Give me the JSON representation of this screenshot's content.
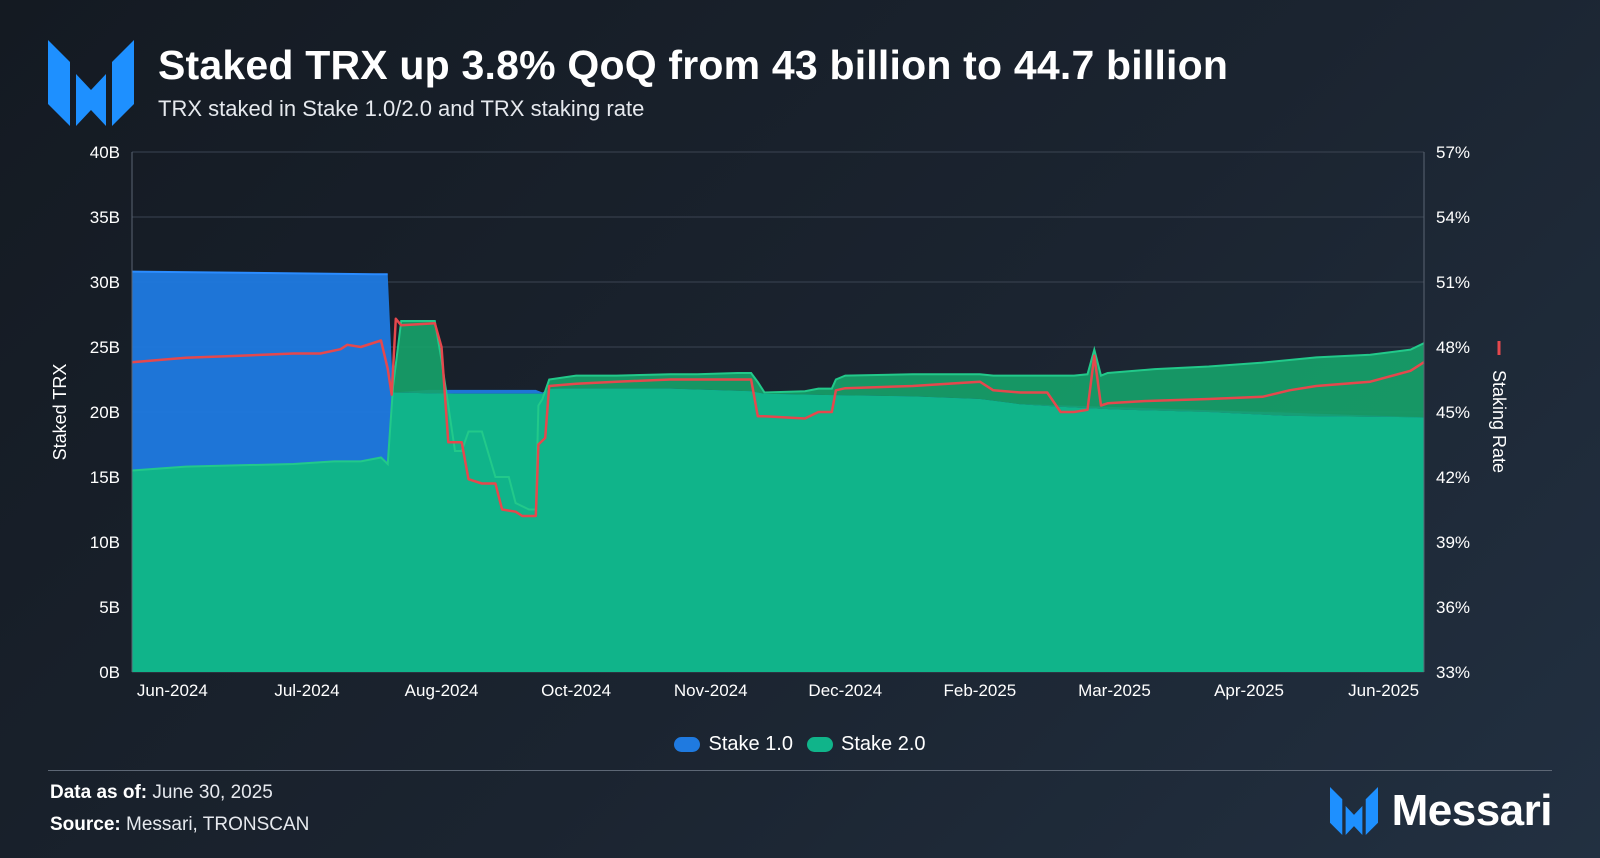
{
  "header": {
    "title": "Staked TRX up 3.8% QoQ from 43 billion to 44.7 billion",
    "subtitle": "TRX staked in Stake 1.0/2.0 and TRX staking rate"
  },
  "footer": {
    "data_label": "Data as of:",
    "data_value": "June 30, 2025",
    "source_label": "Source:",
    "source_value": "Messari, TRONSCAN",
    "brand": "Messari"
  },
  "colors": {
    "stake1": "#1f7ae0",
    "stake2": "#10b48a",
    "stake2_upper": "#16a36a",
    "rate": "#e5484d",
    "logo": "#1e90ff"
  },
  "icons": {
    "logo": "messari-logo-icon"
  },
  "chart_data": {
    "type": "area",
    "title": "Staked TRX up 3.8% QoQ from 43 billion to 44.7 billion",
    "ylabel": "Staked TRX",
    "y2label": "Staking Rate",
    "ylim": [
      0,
      40
    ],
    "y2lim": [
      33,
      57
    ],
    "yticks": [
      "0B",
      "5B",
      "10B",
      "15B",
      "20B",
      "25B",
      "30B",
      "35B",
      "40B"
    ],
    "y2ticks": [
      "33%",
      "36%",
      "39%",
      "42%",
      "45%",
      "48%",
      "51%",
      "54%",
      "57%"
    ],
    "xlim": [
      0,
      96
    ],
    "xticks": [
      {
        "label": "Jun-2024",
        "x": 3
      },
      {
        "label": "Jul-2024",
        "x": 13
      },
      {
        "label": "Aug-2024",
        "x": 23
      },
      {
        "label": "Oct-2024",
        "x": 33
      },
      {
        "label": "Nov-2024",
        "x": 43
      },
      {
        "label": "Dec-2024",
        "x": 53
      },
      {
        "label": "Feb-2025",
        "x": 63
      },
      {
        "label": "Mar-2025",
        "x": 73
      },
      {
        "label": "Apr-2025",
        "x": 83
      },
      {
        "label": "Jun-2025",
        "x": 93
      }
    ],
    "legend": [
      "Stake 1.0",
      "Stake 2.0"
    ],
    "series": [
      {
        "name": "Stake 2.0",
        "axis": "left",
        "points": [
          [
            0,
            15.5
          ],
          [
            4,
            15.8
          ],
          [
            8,
            15.9
          ],
          [
            12,
            16.0
          ],
          [
            15,
            16.2
          ],
          [
            17,
            16.2
          ],
          [
            18.5,
            16.5
          ],
          [
            19,
            16.0
          ],
          [
            19.4,
            22.0
          ],
          [
            20,
            27.0
          ],
          [
            22.5,
            27.0
          ],
          [
            23,
            24.0
          ],
          [
            24,
            17.0
          ],
          [
            24.5,
            17.0
          ],
          [
            25,
            18.5
          ],
          [
            26,
            18.5
          ],
          [
            27,
            15.0
          ],
          [
            28,
            15.0
          ],
          [
            28.5,
            13.0
          ],
          [
            29.5,
            12.5
          ],
          [
            30,
            12.5
          ],
          [
            30.2,
            20.5
          ],
          [
            30.5,
            21.0
          ],
          [
            31,
            22.5
          ],
          [
            33,
            22.8
          ],
          [
            36,
            22.8
          ],
          [
            40,
            22.9
          ],
          [
            42,
            22.9
          ],
          [
            45,
            23.0
          ],
          [
            46,
            23.0
          ],
          [
            46.5,
            22.3
          ],
          [
            47,
            21.5
          ],
          [
            50,
            21.6
          ],
          [
            51,
            21.8
          ],
          [
            52,
            21.8
          ],
          [
            52.3,
            22.5
          ],
          [
            53,
            22.8
          ],
          [
            58,
            22.9
          ],
          [
            63,
            22.9
          ],
          [
            64,
            22.8
          ],
          [
            66,
            22.8
          ],
          [
            70,
            22.8
          ],
          [
            71,
            22.9
          ],
          [
            71.5,
            24.8
          ],
          [
            72,
            22.8
          ],
          [
            72.5,
            23.0
          ],
          [
            76,
            23.3
          ],
          [
            80,
            23.5
          ],
          [
            84,
            23.8
          ],
          [
            88,
            24.2
          ],
          [
            92,
            24.4
          ],
          [
            95,
            24.8
          ],
          [
            96,
            25.3
          ]
        ]
      },
      {
        "name": "Stake 2.0 base",
        "axis": "left",
        "points": [
          [
            0,
            15.5
          ],
          [
            4,
            15.8
          ],
          [
            8,
            15.9
          ],
          [
            12,
            16.0
          ],
          [
            15,
            16.2
          ],
          [
            17,
            16.2
          ],
          [
            18.5,
            16.5
          ],
          [
            19,
            16.0
          ],
          [
            19.4,
            21.5
          ],
          [
            24,
            21.4
          ],
          [
            28,
            21.4
          ],
          [
            30.5,
            21.4
          ],
          [
            31,
            21.8
          ],
          [
            40,
            21.8
          ],
          [
            46,
            21.6
          ],
          [
            47,
            21.4
          ],
          [
            52,
            21.3
          ],
          [
            58,
            21.2
          ],
          [
            63,
            21.0
          ],
          [
            66,
            20.6
          ],
          [
            69,
            20.4
          ],
          [
            73,
            20.2
          ],
          [
            80,
            20.0
          ],
          [
            86,
            19.7
          ],
          [
            96,
            19.6
          ]
        ]
      },
      {
        "name": "Stake 1.0",
        "axis": "left",
        "points": [
          [
            0,
            30.8
          ],
          [
            18,
            30.6
          ],
          [
            19,
            30.6
          ],
          [
            19.4,
            21.5
          ],
          [
            22,
            21.7
          ],
          [
            30,
            21.7
          ],
          [
            30.5,
            21.5
          ],
          [
            31,
            21.8
          ],
          [
            96,
            19.6
          ]
        ]
      },
      {
        "name": "Staking Rate",
        "axis": "right",
        "points": [
          [
            0,
            47.3
          ],
          [
            4,
            47.5
          ],
          [
            8,
            47.6
          ],
          [
            12,
            47.7
          ],
          [
            14,
            47.7
          ],
          [
            15.5,
            47.9
          ],
          [
            16,
            48.1
          ],
          [
            17,
            48.0
          ],
          [
            18.5,
            48.3
          ],
          [
            19,
            47.0
          ],
          [
            19.3,
            45.8
          ],
          [
            19.6,
            49.3
          ],
          [
            20,
            49.0
          ],
          [
            22.5,
            49.1
          ],
          [
            23,
            48.0
          ],
          [
            23.5,
            43.6
          ],
          [
            24,
            43.6
          ],
          [
            24.5,
            43.6
          ],
          [
            25,
            41.9
          ],
          [
            26,
            41.7
          ],
          [
            27,
            41.7
          ],
          [
            27.5,
            40.5
          ],
          [
            28.5,
            40.4
          ],
          [
            29,
            40.2
          ],
          [
            30,
            40.2
          ],
          [
            30.2,
            43.5
          ],
          [
            30.7,
            43.8
          ],
          [
            31,
            46.2
          ],
          [
            33,
            46.3
          ],
          [
            36,
            46.4
          ],
          [
            40,
            46.5
          ],
          [
            45,
            46.5
          ],
          [
            46,
            46.5
          ],
          [
            46.5,
            44.8
          ],
          [
            47,
            44.8
          ],
          [
            50,
            44.7
          ],
          [
            51,
            45.0
          ],
          [
            52,
            45.0
          ],
          [
            52.3,
            46.0
          ],
          [
            53,
            46.1
          ],
          [
            58,
            46.2
          ],
          [
            63,
            46.4
          ],
          [
            64,
            46.0
          ],
          [
            66,
            45.9
          ],
          [
            68,
            45.9
          ],
          [
            69,
            45.0
          ],
          [
            70,
            45.0
          ],
          [
            71,
            45.1
          ],
          [
            71.5,
            47.6
          ],
          [
            72,
            45.3
          ],
          [
            72.5,
            45.4
          ],
          [
            75,
            45.5
          ],
          [
            80,
            45.6
          ],
          [
            84,
            45.7
          ],
          [
            86,
            46.0
          ],
          [
            88,
            46.2
          ],
          [
            92,
            46.4
          ],
          [
            95,
            46.9
          ],
          [
            96,
            47.3
          ]
        ]
      }
    ]
  }
}
